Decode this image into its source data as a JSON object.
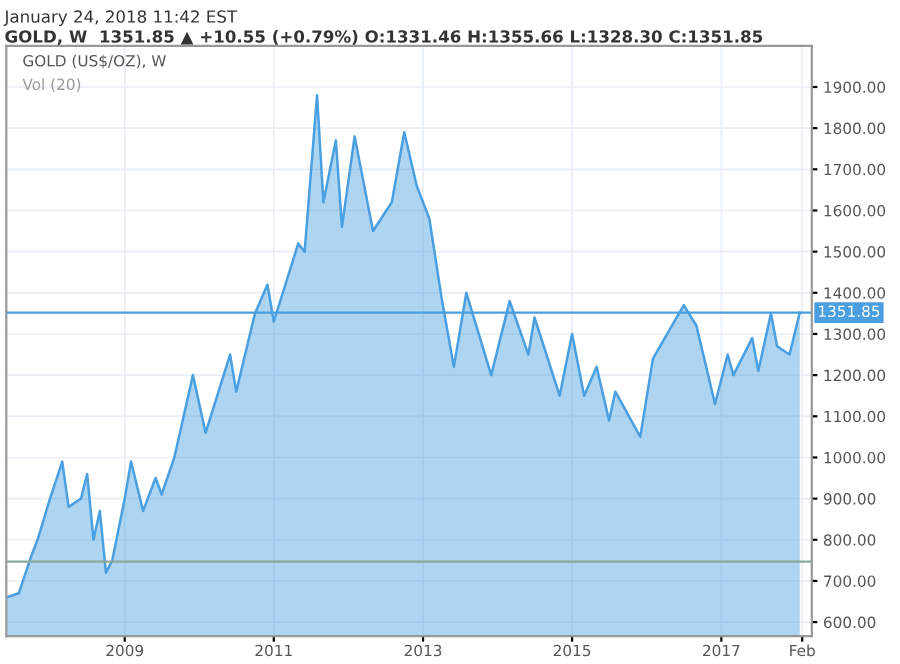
{
  "chart_data": {
    "type": "area",
    "title": "January 24, 2018 11:42 EST",
    "subtitle": "GOLD, W  1351.85 ▲ +10.55 (+0.79%) O:1331.46 H:1355.66 L:1328.30 C:1351.85",
    "annotations": [
      "GOLD (US$/OZ), W",
      "Vol (20)"
    ],
    "x": [
      "2007-06",
      "2007-08",
      "2007-10",
      "2007-11",
      "2008-01",
      "2008-03",
      "2008-04",
      "2008-06",
      "2008-07",
      "2008-08",
      "2008-09",
      "2008-10",
      "2008-11",
      "2009-01",
      "2009-02",
      "2009-04",
      "2009-06",
      "2009-07",
      "2009-09",
      "2009-12",
      "2010-02",
      "2010-06",
      "2010-07",
      "2010-10",
      "2010-12",
      "2011-01",
      "2011-05",
      "2011-06",
      "2011-08",
      "2011-09",
      "2011-11",
      "2011-12",
      "2012-02",
      "2012-05",
      "2012-08",
      "2012-10",
      "2012-12",
      "2013-02",
      "2013-04",
      "2013-06",
      "2013-08",
      "2013-12",
      "2014-03",
      "2014-06",
      "2014-07",
      "2014-11",
      "2015-01",
      "2015-03",
      "2015-05",
      "2015-07",
      "2015-08",
      "2015-12",
      "2016-02",
      "2016-07",
      "2016-09",
      "2016-12",
      "2017-02",
      "2017-03",
      "2017-06",
      "2017-07",
      "2017-09",
      "2017-10",
      "2017-12",
      "2018-01-20"
    ],
    "series": [
      {
        "color": "#4a9fe0",
        "values": [
          660,
          670,
          760,
          800,
          900,
          990,
          880,
          900,
          960,
          800,
          870,
          720,
          750,
          900,
          990,
          870,
          950,
          910,
          1000,
          1200,
          1060,
          1250,
          1160,
          1350,
          1420,
          1330,
          1520,
          1500,
          1880,
          1620,
          1770,
          1560,
          1780,
          1550,
          1620,
          1790,
          1660,
          1580,
          1390,
          1220,
          1400,
          1200,
          1380,
          1250,
          1340,
          1150,
          1300,
          1150,
          1220,
          1090,
          1160,
          1050,
          1240,
          1370,
          1320,
          1130,
          1250,
          1200,
          1290,
          1210,
          1350,
          1270,
          1250,
          1351.85
        ]
      }
    ],
    "xlim": [
      "2007-06-01",
      "2018-03-20"
    ],
    "xticks": [
      {
        "value": "2009-01-01",
        "label": "2009"
      },
      {
        "value": "2011-01-01",
        "label": "2011"
      },
      {
        "value": "2013-01-01",
        "label": "2013"
      },
      {
        "value": "2015-01-01",
        "label": "2015"
      },
      {
        "value": "2017-01-01",
        "label": "2017"
      },
      {
        "value": "2018-02-01",
        "label": "Feb"
      }
    ],
    "ylim": [
      566,
      2000
    ],
    "yticks": [
      {
        "value": 600,
        "label": "600.00"
      },
      {
        "value": 700,
        "label": "700.00"
      },
      {
        "value": 800,
        "label": "800.00"
      },
      {
        "value": 900,
        "label": "900.00"
      },
      {
        "value": 1000,
        "label": "1000.00"
      },
      {
        "value": 1100,
        "label": "1100.00"
      },
      {
        "value": 1200,
        "label": "1200.00"
      },
      {
        "value": 1300,
        "label": "1300.00"
      },
      {
        "value": 1400,
        "label": "1400.00"
      },
      {
        "value": 1500,
        "label": "1500.00"
      },
      {
        "value": 1600,
        "label": "1600.00"
      },
      {
        "value": 1700,
        "label": "1700.00"
      },
      {
        "value": 1800,
        "label": "1800.00"
      },
      {
        "value": 1900,
        "label": "1900.00"
      }
    ],
    "ref_lines": [
      {
        "axis": "y",
        "value": 1351.85,
        "label": "1351.85",
        "color": "#4a9fe0"
      },
      {
        "axis": "y",
        "value": 747,
        "color": "#8aa89a"
      }
    ],
    "grid": true
  }
}
